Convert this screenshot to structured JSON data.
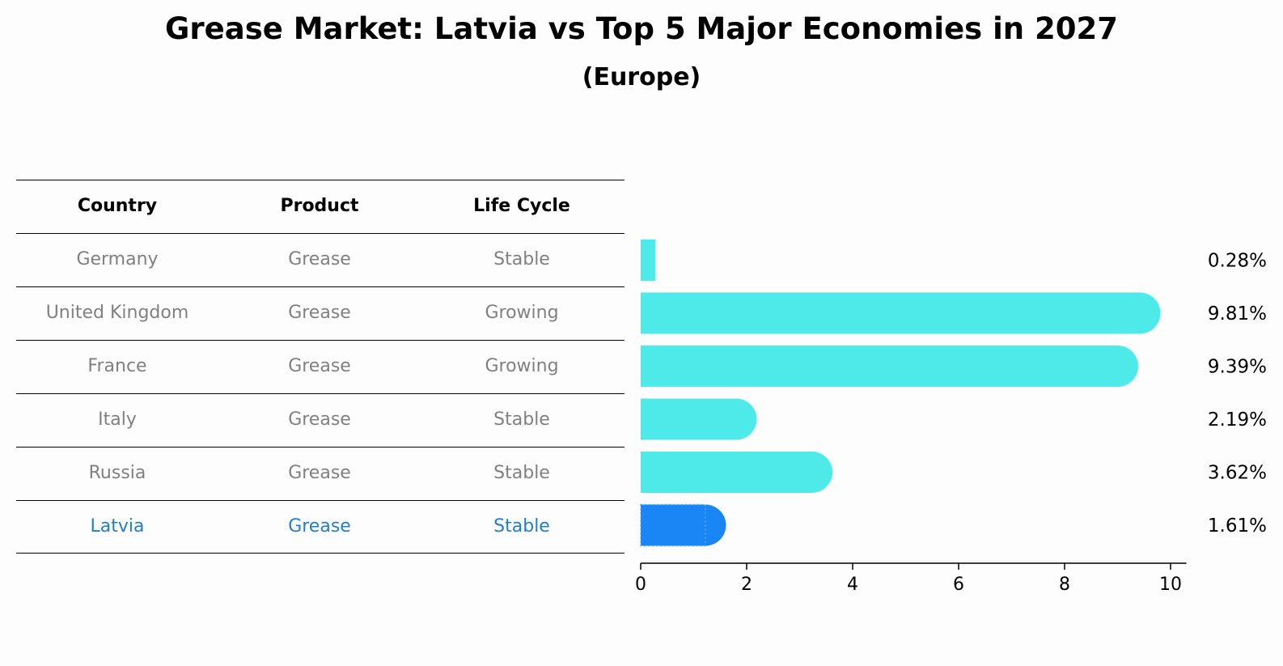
{
  "title": "Grease Market: Latvia vs Top 5 Major Economies in 2027",
  "subtitle": "(Europe)",
  "table": {
    "headers": [
      "Country",
      "Product",
      "Life Cycle"
    ],
    "rows": [
      [
        "Germany",
        "Grease",
        "Stable"
      ],
      [
        "United Kingdom",
        "Grease",
        "Growing"
      ],
      [
        "France",
        "Grease",
        "Growing"
      ],
      [
        "Italy",
        "Grease",
        "Stable"
      ],
      [
        "Russia",
        "Grease",
        "Stable"
      ],
      [
        "Latvia",
        "Grease",
        "Stable"
      ]
    ],
    "highlight_row": "Latvia"
  },
  "chart_data": {
    "type": "bar",
    "orientation": "horizontal",
    "categories": [
      "Germany",
      "United Kingdom",
      "France",
      "Italy",
      "Russia",
      "Latvia"
    ],
    "values": [
      0.28,
      9.81,
      9.39,
      2.19,
      3.62,
      1.61
    ],
    "data_labels": [
      "0.28%",
      "9.81%",
      "9.39%",
      "2.19%",
      "3.62%",
      "1.61%"
    ],
    "xticks": [
      "0",
      "2",
      "4",
      "6",
      "8",
      "10"
    ],
    "xlim": [
      0,
      10.3
    ],
    "colors": {
      "bar": "#4deae9",
      "highlight": "#1a85f5"
    },
    "grid": false
  }
}
